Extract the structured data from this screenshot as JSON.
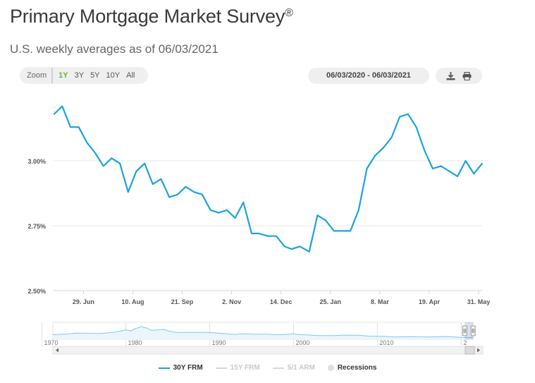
{
  "header": {
    "title": "Primary Mortgage Market Survey",
    "title_mark": "®",
    "subtitle": "U.S. weekly averages as of 06/03/2021"
  },
  "toolbar": {
    "zoom_label": "Zoom",
    "zoom_options": [
      "1Y",
      "3Y",
      "5Y",
      "10Y",
      "All"
    ],
    "zoom_selected": "1Y",
    "date_range": "06/03/2020 - 06/03/2021",
    "download_icon": "download-icon",
    "print_icon": "print-icon"
  },
  "colors": {
    "series": "#1ba3dc",
    "active_zoom": "#6cb23b",
    "inactive_legend": "#c8c8c8"
  },
  "chart_data": {
    "type": "line",
    "series": [
      {
        "name": "30Y FRM",
        "x": [
          "2020-06-04",
          "2020-06-11",
          "2020-06-18",
          "2020-06-25",
          "2020-07-02",
          "2020-07-09",
          "2020-07-16",
          "2020-07-23",
          "2020-07-30",
          "2020-08-06",
          "2020-08-13",
          "2020-08-20",
          "2020-08-27",
          "2020-09-03",
          "2020-09-10",
          "2020-09-17",
          "2020-09-24",
          "2020-10-01",
          "2020-10-08",
          "2020-10-15",
          "2020-10-22",
          "2020-10-29",
          "2020-11-05",
          "2020-11-12",
          "2020-11-19",
          "2020-11-25",
          "2020-12-03",
          "2020-12-10",
          "2020-12-17",
          "2020-12-23",
          "2020-12-30",
          "2021-01-07",
          "2021-01-14",
          "2021-01-21",
          "2021-01-28",
          "2021-02-04",
          "2021-02-11",
          "2021-02-18",
          "2021-02-25",
          "2021-03-04",
          "2021-03-11",
          "2021-03-18",
          "2021-03-25",
          "2021-04-01",
          "2021-04-08",
          "2021-04-15",
          "2021-04-22",
          "2021-04-29",
          "2021-05-06",
          "2021-05-13",
          "2021-05-20",
          "2021-05-27",
          "2021-06-03"
        ],
        "values": [
          3.18,
          3.21,
          3.13,
          3.13,
          3.07,
          3.03,
          2.98,
          3.01,
          2.99,
          2.88,
          2.96,
          2.99,
          2.91,
          2.93,
          2.86,
          2.87,
          2.9,
          2.88,
          2.87,
          2.81,
          2.8,
          2.81,
          2.78,
          2.84,
          2.72,
          2.72,
          2.71,
          2.71,
          2.67,
          2.66,
          2.67,
          2.65,
          2.79,
          2.77,
          2.73,
          2.73,
          2.73,
          2.81,
          2.97,
          3.02,
          3.05,
          3.09,
          3.17,
          3.18,
          3.13,
          3.04,
          2.97,
          2.98,
          2.96,
          2.94,
          3.0,
          2.95,
          2.99
        ]
      }
    ],
    "x_ticks": [
      "29. Jun",
      "10. Aug",
      "21. Sep",
      "2. Nov",
      "14. Dec",
      "25. Jan",
      "8. Mar",
      "19. Apr",
      "31. May"
    ],
    "y_ticks": [
      "2.50%",
      "2.75%",
      "3.00%"
    ],
    "ylim": [
      2.5,
      3.25
    ],
    "grid": true,
    "legend_position": "bottom-center",
    "navigator": {
      "year_labels": [
        "1970",
        "1980",
        "1990",
        "2000",
        "2010",
        "2"
      ],
      "xlim": [
        1971.3,
        2021.4
      ],
      "history": [
        [
          1971.3,
          7.3
        ],
        [
          1972,
          7.4
        ],
        [
          1973,
          8.0
        ],
        [
          1974,
          9.2
        ],
        [
          1975,
          9.0
        ],
        [
          1976,
          8.8
        ],
        [
          1977,
          8.9
        ],
        [
          1978,
          9.6
        ],
        [
          1979,
          11.2
        ],
        [
          1980,
          13.7
        ],
        [
          1980.6,
          12.5
        ],
        [
          1981,
          15.0
        ],
        [
          1981.8,
          18.4
        ],
        [
          1982.5,
          16.5
        ],
        [
          1983,
          13.2
        ],
        [
          1984,
          13.9
        ],
        [
          1984.6,
          14.6
        ],
        [
          1985,
          12.4
        ],
        [
          1986,
          10.2
        ],
        [
          1987,
          10.2
        ],
        [
          1988,
          10.3
        ],
        [
          1989,
          10.3
        ],
        [
          1990,
          10.1
        ],
        [
          1991,
          9.3
        ],
        [
          1992,
          8.4
        ],
        [
          1993,
          7.3
        ],
        [
          1994,
          8.4
        ],
        [
          1995,
          7.9
        ],
        [
          1996,
          7.8
        ],
        [
          1997,
          7.6
        ],
        [
          1998,
          6.9
        ],
        [
          1999,
          7.4
        ],
        [
          2000,
          8.1
        ],
        [
          2001,
          7.0
        ],
        [
          2002,
          6.5
        ],
        [
          2003,
          5.8
        ],
        [
          2004,
          5.8
        ],
        [
          2005,
          5.9
        ],
        [
          2006,
          6.4
        ],
        [
          2007,
          6.3
        ],
        [
          2008,
          6.0
        ],
        [
          2009,
          5.0
        ],
        [
          2010,
          4.7
        ],
        [
          2011,
          4.5
        ],
        [
          2012,
          3.7
        ],
        [
          2013,
          4.0
        ],
        [
          2014,
          4.2
        ],
        [
          2015,
          3.9
        ],
        [
          2016,
          3.7
        ],
        [
          2017,
          4.0
        ],
        [
          2018,
          4.5
        ],
        [
          2019,
          3.9
        ],
        [
          2020,
          3.1
        ],
        [
          2021,
          3.0
        ],
        [
          2021.4,
          3.0
        ]
      ]
    }
  },
  "legend": [
    {
      "label": "30Y FRM",
      "active": true
    },
    {
      "label": "15Y FRM",
      "active": false
    },
    {
      "label": "5/1 ARM",
      "active": false
    },
    {
      "label": "Recessions",
      "active": true
    }
  ]
}
